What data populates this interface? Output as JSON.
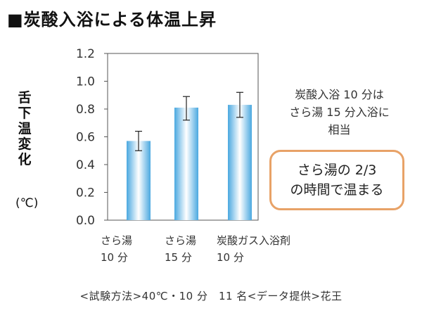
{
  "header": {
    "title": "■炭酸入浴による体温上昇"
  },
  "axis": {
    "ylabel": [
      "舌",
      "下",
      "温",
      "変",
      "化"
    ],
    "unit": "(℃)"
  },
  "note": {
    "lines": [
      "炭酸入浴 10 分は",
      "さら湯 15 分入浴に",
      "相当"
    ]
  },
  "callout": {
    "lines": [
      "さら湯の 2/3",
      "の時間で温まる"
    ],
    "border_color": "#e8a267"
  },
  "footer": {
    "text": "<試験方法>40℃・10 分　11 名<データ提供>花王"
  },
  "chart_data": {
    "type": "bar",
    "categories": [
      [
        "さら湯",
        "10 分"
      ],
      [
        "さら湯",
        "15 分"
      ],
      [
        "炭酸ガス入浴剤",
        "10 分"
      ]
    ],
    "values": [
      0.57,
      0.81,
      0.83
    ],
    "error_bars": [
      [
        0.5,
        0.64
      ],
      [
        0.72,
        0.89
      ],
      [
        0.74,
        0.92
      ]
    ],
    "ylim": [
      0,
      1.2
    ],
    "yticks": [
      "0.0",
      "0.2",
      "0.4",
      "0.6",
      "0.8",
      "1.0",
      "1.2"
    ],
    "bar_color": "#4aa8e0",
    "grid": false
  }
}
